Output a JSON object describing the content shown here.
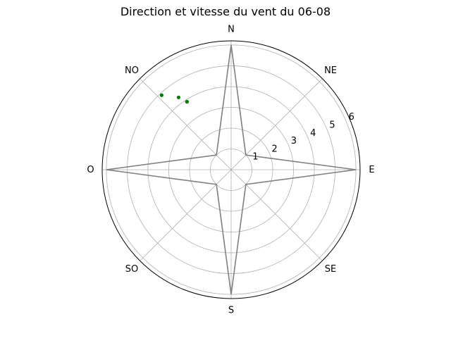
{
  "chart_data": {
    "type": "polar-scatter",
    "title": "Direction et vitesse du vent du 06-08",
    "directions": [
      "N",
      "NE",
      "E",
      "SE",
      "S",
      "SO",
      "O",
      "NO"
    ],
    "direction_angles_deg": [
      0,
      45,
      90,
      135,
      180,
      225,
      270,
      315
    ],
    "radial_ticks": [
      1,
      2,
      3,
      4,
      5,
      6
    ],
    "rlim": [
      0,
      6.2
    ],
    "grid": true,
    "compass_rose": {
      "color": "#808080",
      "r_axis": 6,
      "r_diag": 1
    },
    "points": [
      {
        "angle_deg": 317,
        "r": 4.9
      },
      {
        "angle_deg": 324,
        "r": 4.3
      },
      {
        "angle_deg": 327,
        "r": 3.9
      },
      {
        "angle_deg": 327,
        "r": 3.9
      }
    ],
    "point_color": "#008000"
  }
}
